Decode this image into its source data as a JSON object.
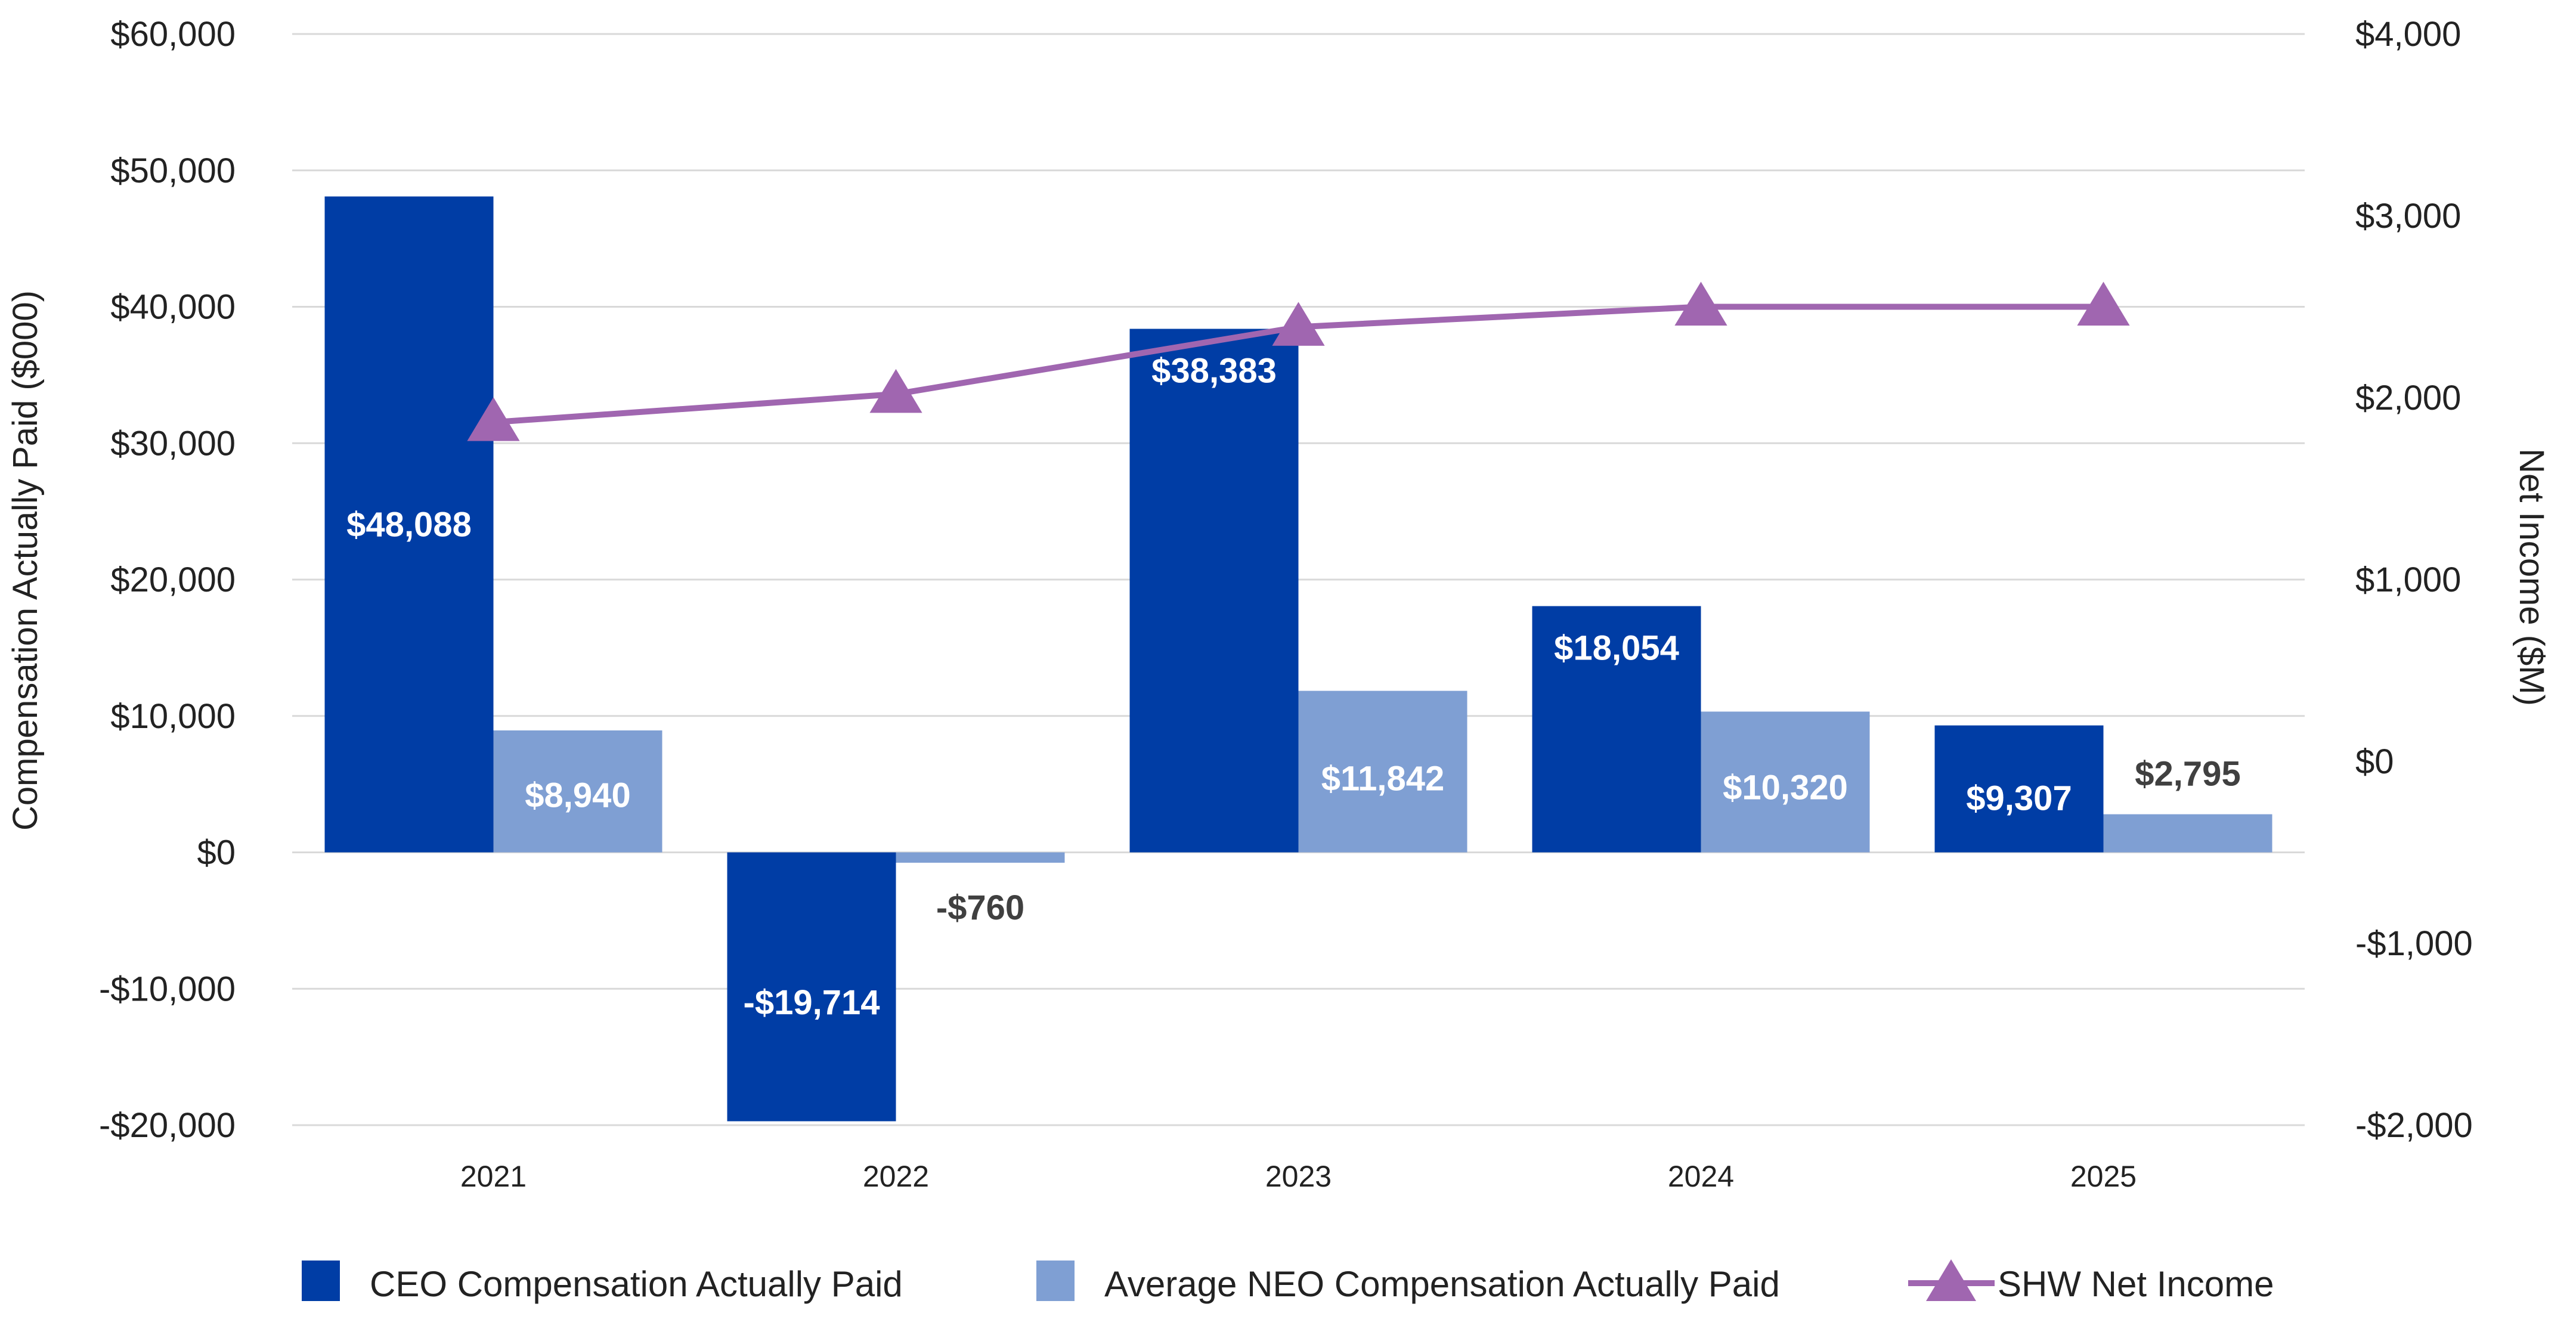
{
  "chart_data": {
    "type": "bar",
    "categories": [
      "2021",
      "2022",
      "2023",
      "2024",
      "2025"
    ],
    "series": [
      {
        "name": "CEO Compensation Actually Paid",
        "kind": "bar",
        "axis": "left",
        "color": "#003da5",
        "values": [
          48088,
          -19714,
          38383,
          18054,
          9307
        ],
        "labels": [
          "$48,088",
          "-$19,714",
          "$38,383",
          "$18,054",
          "$9,307"
        ]
      },
      {
        "name": "Average NEO Compensation Actually Paid",
        "kind": "bar",
        "axis": "right_series_none",
        "axis_ref": "left",
        "color": "#7f9fd3",
        "values": [
          8940,
          -760,
          11842,
          10320,
          2795
        ],
        "labels": [
          "$8,940",
          "-$760",
          "$11,842",
          "$10,320",
          "$2,795"
        ]
      },
      {
        "name": "SHW Net Income",
        "kind": "line",
        "marker": "triangle",
        "axis": "right",
        "color": "#a066b0",
        "values": [
          1865,
          2020,
          2389,
          2500,
          2500
        ]
      }
    ],
    "y_left": {
      "label": "Compensation Actually Paid ($000)",
      "lim": [
        -20000,
        60000
      ],
      "ticks": [
        60000,
        50000,
        40000,
        30000,
        20000,
        10000,
        0,
        -10000,
        -20000
      ],
      "tick_labels": [
        "$60,000",
        "$50,000",
        "$40,000",
        "$30,000",
        "$20,000",
        "$10,000",
        "$0",
        "-$10,000",
        "-$20,000"
      ]
    },
    "y_right": {
      "label": "Net Income ($M)",
      "lim": [
        -2000,
        4000
      ],
      "ticks": [
        4000,
        3000,
        2000,
        1000,
        0,
        -1000,
        -2000
      ],
      "tick_labels": [
        "$4,000",
        "$3,000",
        "$2,000",
        "$1,000",
        "$0",
        "-$1,000",
        "-$2,000"
      ]
    },
    "grid": true,
    "legend_position": "bottom",
    "gridline_color": "#d9d9d9"
  }
}
